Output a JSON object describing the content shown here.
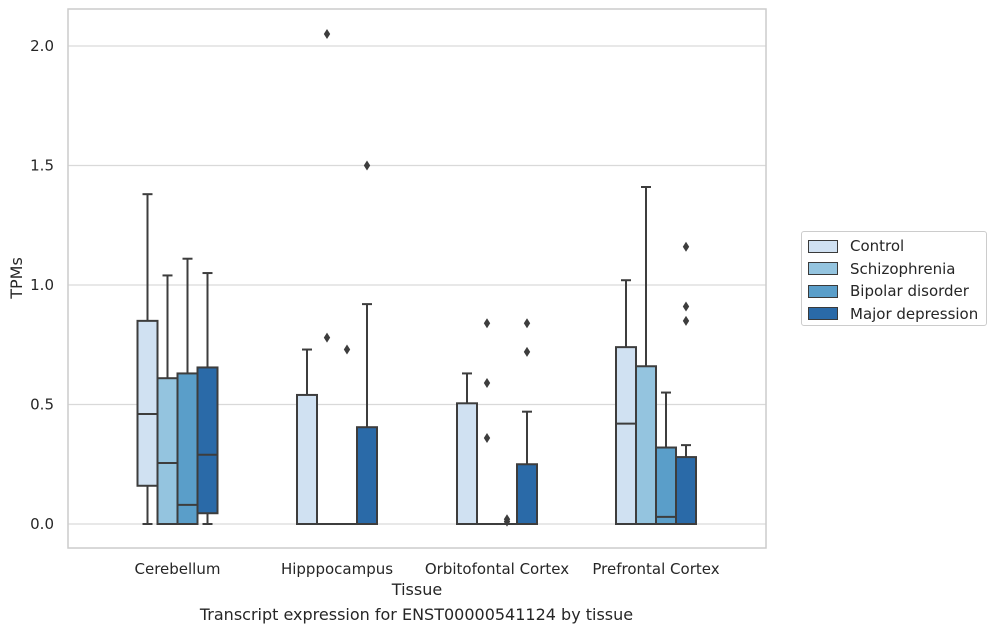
{
  "caption": "Transcript expression for ENST00000541124 by tissue",
  "chart_data": {
    "type": "box",
    "xlabel": "Tissue",
    "ylabel": "TPMs",
    "ylim": [
      -0.1,
      2.15
    ],
    "yticks": [
      0.0,
      0.5,
      1.0,
      1.5,
      2.0
    ],
    "ytick_labels": [
      "0.0",
      "0.5",
      "1.0",
      "1.5",
      "2.0"
    ],
    "grid": "horizontal",
    "legend_position": "right",
    "categories": [
      "Cerebellum",
      "Hipppocampus",
      "Orbitofontal Cortex",
      "Prefrontal Cortex"
    ],
    "series": [
      {
        "name": "Control",
        "color": "#d0e1f2",
        "boxes": [
          {
            "whisker_low": 0.0,
            "q1": 0.16,
            "median": 0.46,
            "q3": 0.85,
            "whisker_high": 1.38,
            "outliers": []
          },
          {
            "whisker_low": 0.0,
            "q1": 0.0,
            "median": 0.0,
            "q3": 0.54,
            "whisker_high": 0.73,
            "outliers": []
          },
          {
            "whisker_low": 0.0,
            "q1": 0.0,
            "median": 0.0,
            "q3": 0.505,
            "whisker_high": 0.63,
            "outliers": []
          },
          {
            "whisker_low": 0.0,
            "q1": 0.0,
            "median": 0.42,
            "q3": 0.74,
            "whisker_high": 1.02,
            "outliers": []
          }
        ]
      },
      {
        "name": "Schizophrenia",
        "color": "#94c4df",
        "boxes": [
          {
            "whisker_low": 0.0,
            "q1": 0.0,
            "median": 0.255,
            "q3": 0.61,
            "whisker_high": 1.04,
            "outliers": []
          },
          {
            "whisker_low": 0.0,
            "q1": 0.0,
            "median": 0.0,
            "q3": 0.0,
            "whisker_high": 0.0,
            "outliers": [
              2.05,
              0.78
            ]
          },
          {
            "whisker_low": 0.0,
            "q1": 0.0,
            "median": 0.0,
            "q3": 0.0,
            "whisker_high": 0.0,
            "outliers": [
              0.84,
              0.59,
              0.36
            ]
          },
          {
            "whisker_low": 0.0,
            "q1": 0.0,
            "median": 0.0,
            "q3": 0.66,
            "whisker_high": 1.41,
            "outliers": []
          }
        ]
      },
      {
        "name": "Bipolar disorder",
        "color": "#5a9ec9",
        "boxes": [
          {
            "whisker_low": 0.0,
            "q1": 0.0,
            "median": 0.08,
            "q3": 0.63,
            "whisker_high": 1.11,
            "outliers": []
          },
          {
            "whisker_low": 0.0,
            "q1": 0.0,
            "median": 0.0,
            "q3": 0.0,
            "whisker_high": 0.0,
            "outliers": [
              0.73
            ]
          },
          {
            "whisker_low": 0.0,
            "q1": 0.0,
            "median": 0.0,
            "q3": 0.0,
            "whisker_high": 0.0,
            "outliers": [
              0.02,
              0.01
            ]
          },
          {
            "whisker_low": 0.0,
            "q1": 0.0,
            "median": 0.03,
            "q3": 0.32,
            "whisker_high": 0.55,
            "outliers": []
          }
        ]
      },
      {
        "name": "Major depression",
        "color": "#2a6aa8",
        "boxes": [
          {
            "whisker_low": 0.0,
            "q1": 0.045,
            "median": 0.29,
            "q3": 0.655,
            "whisker_high": 1.05,
            "outliers": []
          },
          {
            "whisker_low": 0.0,
            "q1": 0.0,
            "median": 0.0,
            "q3": 0.405,
            "whisker_high": 0.92,
            "outliers": [
              1.5
            ]
          },
          {
            "whisker_low": 0.0,
            "q1": 0.0,
            "median": 0.0,
            "q3": 0.25,
            "whisker_high": 0.47,
            "outliers": [
              0.84,
              0.72
            ]
          },
          {
            "whisker_low": 0.0,
            "q1": 0.0,
            "median": 0.0,
            "q3": 0.28,
            "whisker_high": 0.33,
            "outliers": [
              1.16,
              0.91,
              0.85
            ]
          }
        ]
      }
    ]
  }
}
